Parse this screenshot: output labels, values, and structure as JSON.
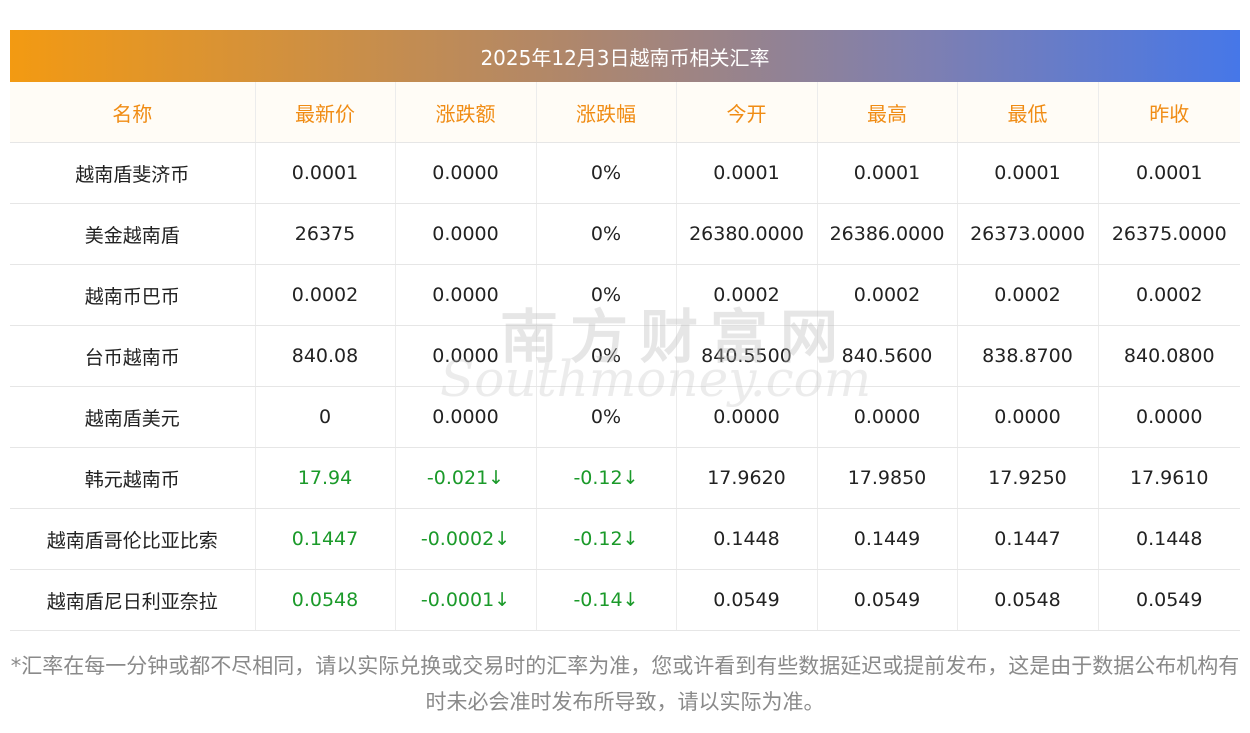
{
  "title": "2025年12月3日越南币相关汇率",
  "watermark": {
    "cn": "南方财富网",
    "en": "Southmoney.com"
  },
  "columns": [
    "名称",
    "最新价",
    "涨跌额",
    "涨跌幅",
    "今开",
    "最高",
    "最低",
    "昨收"
  ],
  "rows": [
    {
      "name": "越南盾斐济币",
      "latest": "0.0001",
      "change": "0.0000",
      "pct": "0%",
      "open": "0.0001",
      "high": "0.0001",
      "low": "0.0001",
      "prev": "0.0001",
      "trend": "flat"
    },
    {
      "name": "美金越南盾",
      "latest": "26375",
      "change": "0.0000",
      "pct": "0%",
      "open": "26380.0000",
      "high": "26386.0000",
      "low": "26373.0000",
      "prev": "26375.0000",
      "trend": "flat"
    },
    {
      "name": "越南币巴币",
      "latest": "0.0002",
      "change": "0.0000",
      "pct": "0%",
      "open": "0.0002",
      "high": "0.0002",
      "low": "0.0002",
      "prev": "0.0002",
      "trend": "flat"
    },
    {
      "name": "台币越南币",
      "latest": "840.08",
      "change": "0.0000",
      "pct": "0%",
      "open": "840.5500",
      "high": "840.5600",
      "low": "838.8700",
      "prev": "840.0800",
      "trend": "flat"
    },
    {
      "name": "越南盾美元",
      "latest": "0",
      "change": "0.0000",
      "pct": "0%",
      "open": "0.0000",
      "high": "0.0000",
      "low": "0.0000",
      "prev": "0.0000",
      "trend": "flat"
    },
    {
      "name": "韩元越南币",
      "latest": "17.94",
      "change": "-0.021↓",
      "pct": "-0.12↓",
      "open": "17.9620",
      "high": "17.9850",
      "low": "17.9250",
      "prev": "17.9610",
      "trend": "down"
    },
    {
      "name": "越南盾哥伦比亚比索",
      "latest": "0.1447",
      "change": "-0.0002↓",
      "pct": "-0.12↓",
      "open": "0.1448",
      "high": "0.1449",
      "low": "0.1447",
      "prev": "0.1448",
      "trend": "down"
    },
    {
      "name": "越南盾尼日利亚奈拉",
      "latest": "0.0548",
      "change": "-0.0001↓",
      "pct": "-0.14↓",
      "open": "0.0549",
      "high": "0.0549",
      "low": "0.0548",
      "prev": "0.0549",
      "trend": "down"
    }
  ],
  "footnote": "*汇率在每一分钟或都不尽相同，请以实际兑换或交易时的汇率为准，您或许看到有些数据延迟或提前发布，这是由于数据公布机构有时未必会准时发布所导致，请以实际为准。"
}
